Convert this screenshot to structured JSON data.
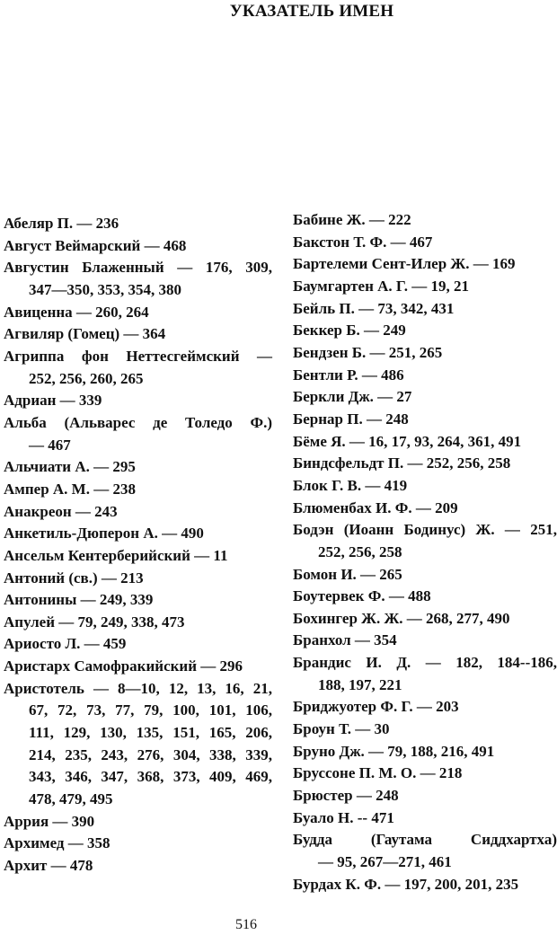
{
  "header": {
    "title": "УКАЗАТЕЛЬ ИМЕН"
  },
  "columns": [
    {
      "entries": [
        {
          "lines": [
            "Абеляр П. — 236"
          ]
        },
        {
          "lines": [
            "Август Веймарский — 468"
          ]
        },
        {
          "lines": [
            "Августин Блаженный — 176, 309,",
            "347—350, 353, 354, 380"
          ]
        },
        {
          "lines": [
            "Авиценна — 260, 264"
          ]
        },
        {
          "lines": [
            "Агвиляр (Гомец) — 364"
          ]
        },
        {
          "lines": [
            "Агриппа фон Неттесгеймский —",
            "252, 256, 260, 265"
          ]
        },
        {
          "lines": [
            "Адриан — 339"
          ]
        },
        {
          "lines": [
            "Альба (Альварес де Толедо Ф.)",
            "— 467"
          ]
        },
        {
          "lines": [
            "Альчиати А. — 295"
          ]
        },
        {
          "lines": [
            "Ампер А. М. — 238"
          ]
        },
        {
          "lines": [
            "Анакреон — 243"
          ]
        },
        {
          "lines": [
            "Анкетиль-Дюперон А. — 490"
          ]
        },
        {
          "lines": [
            "Ансельм Кентерберийский — 11"
          ]
        },
        {
          "lines": [
            "Антоний (св.) — 213"
          ]
        },
        {
          "lines": [
            "Антонины — 249, 339"
          ]
        },
        {
          "lines": [
            "Апулей — 79, 249, 338, 473"
          ]
        },
        {
          "lines": [
            "Ариосто Л. — 459"
          ]
        },
        {
          "lines": [
            "Аристарх Самофракийский — 296"
          ]
        },
        {
          "lines": [
            "Аристотель — 8—10, 12, 13, 16, 21,",
            "67, 72, 73, 77, 79, 100, 101, 106,",
            "111, 129, 130, 135, 151, 165, 206,",
            "214, 235, 243, 276, 304, 338, 339,",
            "343, 346, 347, 368, 373, 409, 469,",
            "478, 479, 495"
          ]
        },
        {
          "lines": [
            "Аррия — 390"
          ]
        },
        {
          "lines": [
            "Архимед — 358"
          ]
        },
        {
          "lines": [
            "Архит — 478"
          ]
        }
      ]
    },
    {
      "entries": [
        {
          "lines": [
            "Бабине Ж. — 222"
          ]
        },
        {
          "lines": [
            "Бакстон Т. Ф. — 467"
          ]
        },
        {
          "lines": [
            "Бартелеми Сент-Илер Ж. — 169"
          ]
        },
        {
          "lines": [
            "Баумгартен А. Г. — 19, 21"
          ]
        },
        {
          "lines": [
            "Бейль П. — 73, 342, 431"
          ]
        },
        {
          "lines": [
            "Беккер Б. — 249"
          ]
        },
        {
          "lines": [
            "Бендзен Б. — 251, 265"
          ]
        },
        {
          "lines": [
            "Бентли Р. — 486"
          ]
        },
        {
          "lines": [
            "Беркли Дж. — 27"
          ]
        },
        {
          "lines": [
            "Бернар П. — 248"
          ]
        },
        {
          "lines": [
            "Бёме Я. — 16, 17, 93, 264, 361, 491"
          ]
        },
        {
          "lines": [
            "Биндсфельдт П. — 252, 256, 258"
          ]
        },
        {
          "lines": [
            "Блок Г. В. — 419"
          ]
        },
        {
          "lines": [
            "Блюменбах И. Ф. — 209"
          ]
        },
        {
          "lines": [
            "Бодэн (Иоанн Бодинус) Ж. — 251,",
            "252, 256, 258"
          ]
        },
        {
          "lines": [
            "Бомон И. — 265"
          ]
        },
        {
          "lines": [
            "Боутервек Ф. — 488"
          ]
        },
        {
          "lines": [
            "Бохингер Ж. Ж. — 268, 277, 490"
          ]
        },
        {
          "lines": [
            "Бранхол — 354"
          ]
        },
        {
          "lines": [
            "Брандис И. Д. — 182, 184--186,",
            "188, 197, 221"
          ]
        },
        {
          "lines": [
            "Бриджуотер Ф. Г. — 203"
          ]
        },
        {
          "lines": [
            "Броун Т. — 30"
          ]
        },
        {
          "lines": [
            "Бруно Дж. — 79, 188, 216, 491"
          ]
        },
        {
          "lines": [
            "Бруссоне П. М. О. — 218"
          ]
        },
        {
          "lines": [
            "Брюстер — 248"
          ]
        },
        {
          "lines": [
            "Буало Н. -- 471"
          ]
        },
        {
          "lines": [
            "Будда (Гаутама Сиддхартха)",
            "— 95, 267—271, 461"
          ]
        },
        {
          "lines": [
            "Бурдах К. Ф. — 197, 200, 201, 235"
          ]
        }
      ]
    }
  ],
  "footer": {
    "page_number": "516"
  }
}
